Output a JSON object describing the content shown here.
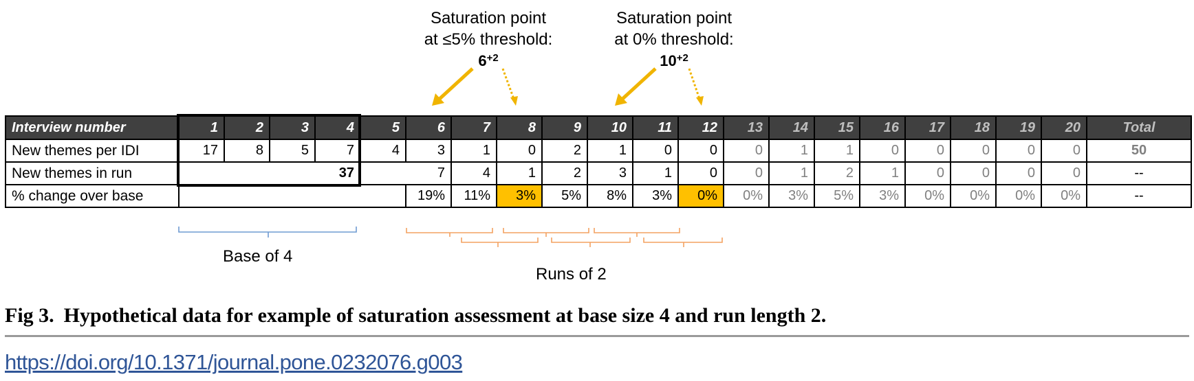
{
  "annotations": [
    {
      "line1": "Saturation point",
      "line2": "at ≤5% threshold:",
      "value": "6",
      "sup": "+2"
    },
    {
      "line1": "Saturation point",
      "line2": "at 0% threshold:",
      "value": "10",
      "sup": "+2"
    }
  ],
  "table": {
    "header_label": "Interview number",
    "columns": [
      "1",
      "2",
      "3",
      "4",
      "5",
      "6",
      "7",
      "8",
      "9",
      "10",
      "11",
      "12",
      "13",
      "14",
      "15",
      "16",
      "17",
      "18",
      "19",
      "20"
    ],
    "total_label": "Total",
    "rows": [
      {
        "label": "New themes per IDI",
        "values": [
          "17",
          "8",
          "5",
          "7",
          "4",
          "3",
          "1",
          "0",
          "2",
          "1",
          "0",
          "0",
          "0",
          "1",
          "1",
          "0",
          "0",
          "0",
          "0",
          "0"
        ],
        "total": "50"
      },
      {
        "label": "New themes in run",
        "base_value": "37",
        "values": [
          "",
          "7",
          "4",
          "1",
          "2",
          "3",
          "1",
          "0",
          "0",
          "1",
          "2",
          "1",
          "0",
          "0",
          "0",
          "0"
        ],
        "total": "--"
      },
      {
        "label": "% change over base",
        "values": [
          "19%",
          "11%",
          "3%",
          "5%",
          "8%",
          "3%",
          "0%",
          "0%",
          "3%",
          "5%",
          "3%",
          "0%",
          "0%",
          "0%",
          "0%"
        ],
        "total": "--"
      }
    ]
  },
  "brackets": {
    "base_label": "Base of 4",
    "runs_label": "Runs of 2"
  },
  "colors": {
    "header_bg": "#404040",
    "highlight": "#ffc000",
    "base_bracket": "#6f9bd2",
    "run_bracket": "#f4a261",
    "future_text": "#808080"
  },
  "caption": {
    "fig_label": "Fig 3.",
    "text": "Hypothetical data for example of saturation assessment at base size 4 and run length 2."
  },
  "doi": "https://doi.org/10.1371/journal.pone.0232076.g003"
}
